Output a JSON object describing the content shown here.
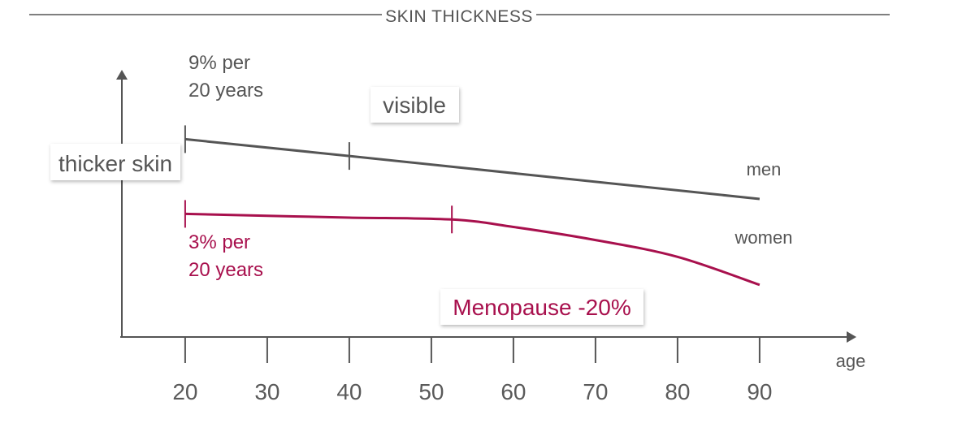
{
  "colors": {
    "men": "#555555",
    "women": "#a8104d",
    "axis": "#555555",
    "text": "#555555"
  },
  "chart_data": {
    "type": "line",
    "title": "SKIN THICKNESS",
    "xlabel": "age",
    "ylabel": "thicker skin",
    "x_ticks": [
      20,
      30,
      40,
      50,
      60,
      70,
      80,
      90
    ],
    "xlim": [
      11,
      101
    ],
    "series": [
      {
        "name": "men",
        "rate_label": [
          "9% per",
          "20 years"
        ],
        "points": [
          [
            20,
            0.82
          ],
          [
            40,
            0.73
          ],
          [
            90,
            0.5
          ]
        ],
        "markers": [
          20,
          40
        ]
      },
      {
        "name": "women",
        "rate_label": [
          "3% per",
          "20 years"
        ],
        "points": [
          [
            20,
            0.42
          ],
          [
            30,
            0.41
          ],
          [
            40,
            0.4
          ],
          [
            52.5,
            0.39
          ],
          [
            60,
            0.35
          ],
          [
            70,
            0.28
          ],
          [
            80,
            0.19
          ],
          [
            90,
            0.04
          ]
        ],
        "markers": [
          20,
          52.5
        ]
      }
    ],
    "annotations": {
      "visible": "visible",
      "menopause": "Menopause -20%"
    }
  }
}
